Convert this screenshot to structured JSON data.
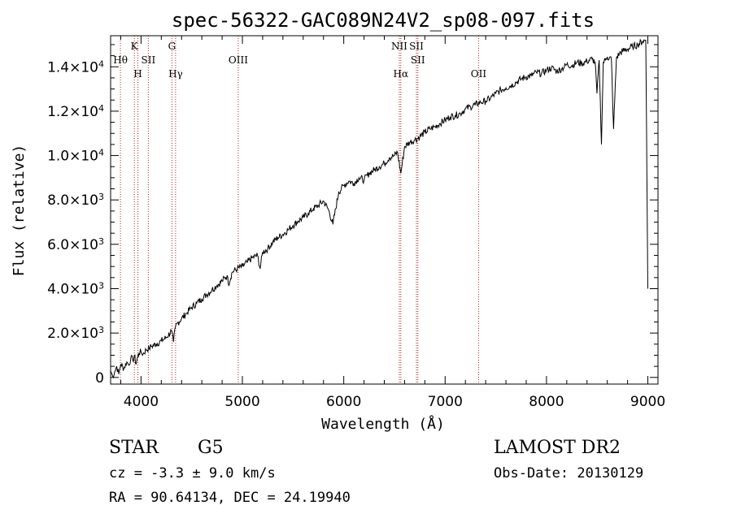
{
  "chart_data": {
    "type": "line",
    "title": "spec-56322-GAC089N24V2_sp08-097.fits",
    "xlabel": "Wavelength (Å)",
    "ylabel": "Flux (relative)",
    "xlim": [
      3700,
      9100
    ],
    "ylim": [
      -300,
      15400
    ],
    "grid": false,
    "x_ticks": [
      4000,
      5000,
      6000,
      7000,
      8000,
      9000
    ],
    "x_tick_labels": [
      "4000",
      "5000",
      "6000",
      "7000",
      "8000",
      "9000"
    ],
    "y_ticks": [
      0,
      2000,
      4000,
      6000,
      8000,
      10000,
      12000,
      14000
    ],
    "y_tick_labels": [
      {
        "mant": "0",
        "exp": ""
      },
      {
        "mant": "2.0×10",
        "exp": "3"
      },
      {
        "mant": "4.0×10",
        "exp": "3"
      },
      {
        "mant": "6.0×10",
        "exp": "3"
      },
      {
        "mant": "8.0×10",
        "exp": "3"
      },
      {
        "mant": "1.0×10",
        "exp": "4"
      },
      {
        "mant": "1.2×10",
        "exp": "4"
      },
      {
        "mant": "1.4×10",
        "exp": "4"
      }
    ],
    "series": [
      {
        "color": "#000000",
        "x": [
          3700,
          3720,
          3740,
          3760,
          3780,
          3800,
          3830,
          3860,
          3880,
          3900,
          3920,
          3935,
          3950,
          3965,
          3980,
          4000,
          4020,
          4050,
          4080,
          4100,
          4150,
          4200,
          4250,
          4300,
          4320,
          4340,
          4360,
          4400,
          4450,
          4500,
          4550,
          4600,
          4650,
          4700,
          4750,
          4800,
          4850,
          4861,
          4900,
          4950,
          5000,
          5050,
          5100,
          5150,
          5175,
          5200,
          5250,
          5300,
          5350,
          5400,
          5450,
          5500,
          5550,
          5600,
          5650,
          5700,
          5750,
          5800,
          5850,
          5893,
          5950,
          6000,
          6050,
          6100,
          6150,
          6200,
          6250,
          6300,
          6350,
          6400,
          6450,
          6500,
          6530,
          6563,
          6600,
          6650,
          6700,
          6750,
          6800,
          6850,
          6900,
          6950,
          7000,
          7050,
          7100,
          7150,
          7200,
          7250,
          7300,
          7350,
          7400,
          7450,
          7500,
          7550,
          7600,
          7650,
          7700,
          7750,
          7800,
          7850,
          7900,
          7950,
          8000,
          8050,
          8100,
          8150,
          8200,
          8250,
          8300,
          8350,
          8400,
          8450,
          8480,
          8498,
          8520,
          8542,
          8560,
          8580,
          8600,
          8640,
          8662,
          8690,
          8720,
          8750,
          8800,
          8850,
          8900,
          8950,
          8980,
          9000
        ],
        "values": [
          300,
          50,
          250,
          500,
          150,
          600,
          400,
          700,
          550,
          900,
          750,
          1000,
          600,
          900,
          1100,
          1150,
          1050,
          1250,
          1300,
          1400,
          1500,
          1650,
          1800,
          2100,
          1600,
          2300,
          2450,
          2650,
          2900,
          3150,
          3350,
          3550,
          3750,
          3950,
          4150,
          4350,
          4600,
          4200,
          4750,
          4900,
          5000,
          5200,
          5400,
          5500,
          4900,
          5650,
          5800,
          6100,
          6300,
          6450,
          6650,
          6850,
          7050,
          7200,
          7400,
          7600,
          7750,
          7950,
          7550,
          6900,
          8350,
          8650,
          8850,
          8750,
          9000,
          8900,
          9200,
          9350,
          9500,
          9650,
          9900,
          10000,
          10150,
          9200,
          10400,
          10600,
          10700,
          10850,
          11050,
          11200,
          11300,
          11450,
          11600,
          11750,
          11800,
          11900,
          12100,
          12200,
          12300,
          12400,
          12450,
          12600,
          12800,
          12950,
          13050,
          13150,
          13300,
          13450,
          13550,
          13600,
          13750,
          13700,
          13850,
          13950,
          13800,
          13900,
          14100,
          14050,
          14200,
          14150,
          14250,
          14350,
          14200,
          12800,
          14300,
          10500,
          14200,
          14300,
          14450,
          14350,
          11200,
          14400,
          14600,
          14700,
          14800,
          14900,
          15000,
          15150,
          15200,
          4000
        ]
      }
    ],
    "annotations": {
      "top": [
        {
          "x": 3797,
          "label": "Hθ",
          "row": 2
        },
        {
          "x": 3934,
          "label": "K",
          "row": 1
        },
        {
          "x": 3969,
          "label": "H",
          "row": 3
        },
        {
          "x": 4072,
          "label": "SII",
          "row": 2
        },
        {
          "x": 4305,
          "label": "G",
          "row": 1
        },
        {
          "x": 4341,
          "label": "Hγ",
          "row": 3
        },
        {
          "x": 4959,
          "label": "OIII",
          "row": 2
        },
        {
          "x": 6548,
          "label": "NII",
          "row": 1
        },
        {
          "x": 6563,
          "label": "Hα",
          "row": 3
        },
        {
          "x": 6717,
          "label": "SII",
          "row": 1
        },
        {
          "x": 6731,
          "label": "SII",
          "row": 2
        },
        {
          "x": 7330,
          "label": "OII",
          "row": 3
        }
      ],
      "lines": [
        3797,
        3934,
        3969,
        4072,
        4305,
        4341,
        4959,
        6548,
        6563,
        6717,
        6731,
        7330
      ]
    }
  },
  "info": {
    "class": "STAR",
    "subclass": "G5",
    "cz": "cz = -3.3 ± 9.0 km/s",
    "coords": "RA =  90.64134, DEC =  24.19940",
    "survey": "LAMOST DR2",
    "obs_date": "Obs-Date: 20130129"
  },
  "colors": {
    "spectrum": "#000000",
    "line_marker": "#b22222",
    "axes": "#000000"
  }
}
